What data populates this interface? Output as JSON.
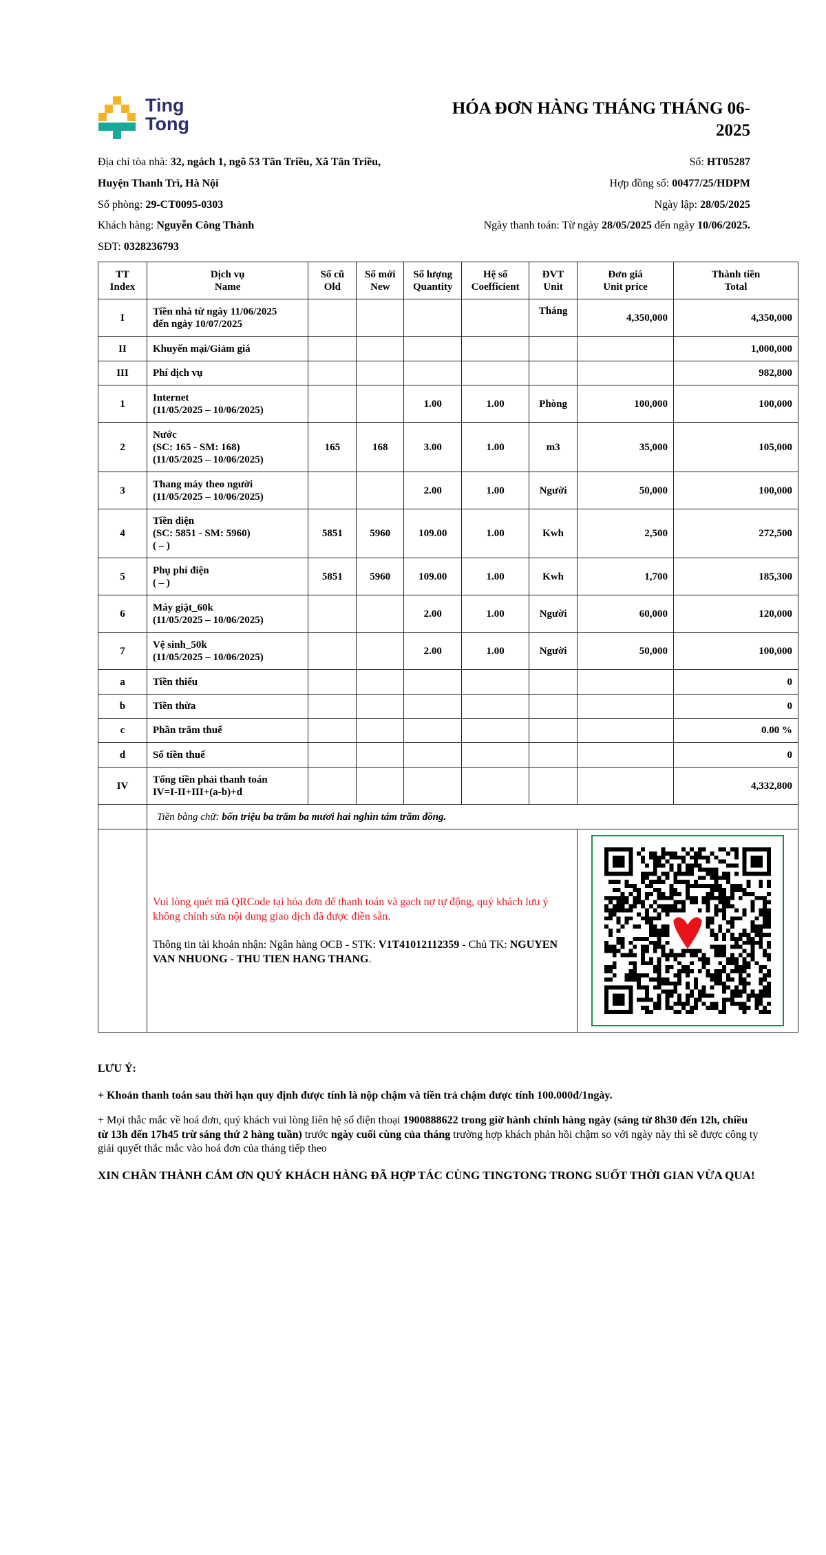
{
  "logo": {
    "line1": "Ting",
    "line2": "Tong",
    "colors": {
      "yellow": "#f5b325",
      "teal": "#1aa89a",
      "navy": "#2b2d6e"
    }
  },
  "title": "HÓA ĐƠN HÀNG THÁNG THÁNG 06-2025",
  "info": {
    "address_label": "Địa chỉ tòa nhà: ",
    "address_line1": "32, ngách 1, ngõ 53 Tân Triều, Xã Tân Triều,",
    "address_line2": "Huyện Thanh Trì, Hà Nội",
    "room_label": "Số phòng: ",
    "room": "29-CT0095-0303",
    "customer_label": "Khách hàng: ",
    "customer": "Nguyễn Công Thành",
    "phone_label": "SĐT: ",
    "phone": "0328236793",
    "number_label": "Số: ",
    "number": "HT05287",
    "contract_label": "Hợp đồng số: ",
    "contract": "00477/25/HDPM",
    "date_label": "Ngày lập: ",
    "date": "28/05/2025",
    "pay_label": "Ngày thanh toán: Từ ngày ",
    "pay_from": "28/05/2025",
    "pay_mid": " đến ngày ",
    "pay_to": "10/06/2025."
  },
  "table": {
    "headers": [
      [
        "TT",
        "Index"
      ],
      [
        "Dịch vụ",
        "Name"
      ],
      [
        "Số cũ",
        "Old"
      ],
      [
        "Số mới",
        "New"
      ],
      [
        "Số lượng",
        "Quantity"
      ],
      [
        "Hệ số",
        "Coefficient"
      ],
      [
        "ĐVT",
        "Unit"
      ],
      [
        "Đơn giá",
        "Unit price"
      ],
      [
        "Thành tiền",
        "Total"
      ]
    ],
    "rows": [
      {
        "index": "I",
        "name": [
          "Tiền nhà từ ngày 11/06/2025",
          "đến ngày 10/07/2025"
        ],
        "old": "",
        "new": "",
        "qty": "",
        "coef": "",
        "unit": "Tháng",
        "price": "4,350,000",
        "total": "4,350,000"
      },
      {
        "index": "II",
        "name": [
          "Khuyến mại/Giảm giá"
        ],
        "old": "",
        "new": "",
        "qty": "",
        "coef": "",
        "unit": "",
        "price": "",
        "total": "1,000,000"
      },
      {
        "index": "III",
        "name": [
          "Phí dịch vụ"
        ],
        "old": "",
        "new": "",
        "qty": "",
        "coef": "",
        "unit": "",
        "price": "",
        "total": "982,800"
      },
      {
        "index": "1",
        "name": [
          "Internet",
          "(11/05/2025 – 10/06/2025)"
        ],
        "old": "",
        "new": "",
        "qty": "1.00",
        "coef": "1.00",
        "unit": "Phòng",
        "price": "100,000",
        "total": "100,000"
      },
      {
        "index": "2",
        "name": [
          "Nước",
          "(SC: 165 - SM: 168)",
          "(11/05/2025 – 10/06/2025)"
        ],
        "old": "165",
        "new": "168",
        "qty": "3.00",
        "coef": "1.00",
        "unit": "m3",
        "price": "35,000",
        "total": "105,000"
      },
      {
        "index": "3",
        "name": [
          "Thang máy theo người",
          "(11/05/2025 – 10/06/2025)"
        ],
        "old": "",
        "new": "",
        "qty": "2.00",
        "coef": "1.00",
        "unit": "Người",
        "price": "50,000",
        "total": "100,000"
      },
      {
        "index": "4",
        "name": [
          "Tiền điện",
          "(SC: 5851 - SM: 5960)",
          "( – )"
        ],
        "old": "5851",
        "new": "5960",
        "qty": "109.00",
        "coef": "1.00",
        "unit": "Kwh",
        "price": "2,500",
        "total": "272,500"
      },
      {
        "index": "5",
        "name": [
          "Phụ phí điện",
          "( – )"
        ],
        "old": "5851",
        "new": "5960",
        "qty": "109.00",
        "coef": "1.00",
        "unit": "Kwh",
        "price": "1,700",
        "total": "185,300"
      },
      {
        "index": "6",
        "name": [
          "Máy giặt_60k",
          "(11/05/2025 – 10/06/2025)"
        ],
        "old": "",
        "new": "",
        "qty": "2.00",
        "coef": "1.00",
        "unit": "Người",
        "price": "60,000",
        "total": "120,000"
      },
      {
        "index": "7",
        "name": [
          "Vệ sinh_50k",
          "(11/05/2025 – 10/06/2025)"
        ],
        "old": "",
        "new": "",
        "qty": "2.00",
        "coef": "1.00",
        "unit": "Người",
        "price": "50,000",
        "total": "100,000"
      },
      {
        "index": "a",
        "name": [
          "Tiền thiếu"
        ],
        "old": "",
        "new": "",
        "qty": "",
        "coef": "",
        "unit": "",
        "price": "",
        "total": "0"
      },
      {
        "index": "b",
        "name": [
          "Tiền thừa"
        ],
        "old": "",
        "new": "",
        "qty": "",
        "coef": "",
        "unit": "",
        "price": "",
        "total": "0"
      },
      {
        "index": "c",
        "name": [
          "Phần trăm thuế"
        ],
        "old": "",
        "new": "",
        "qty": "",
        "coef": "",
        "unit": "",
        "price": "",
        "total": "0.00 %"
      },
      {
        "index": "d",
        "name": [
          "Số tiền thuế"
        ],
        "old": "",
        "new": "",
        "qty": "",
        "coef": "",
        "unit": "",
        "price": "",
        "total": "0"
      },
      {
        "index": "IV",
        "name": [
          "Tổng tiền phải thanh toán",
          "IV=I-II+III+(a-b)+d"
        ],
        "old": "",
        "new": "",
        "qty": "",
        "coef": "",
        "unit": "",
        "price": "",
        "total": "4,332,800"
      }
    ],
    "words_label": "Tiền bằng chữ: ",
    "words": "bốn triệu ba trăm ba mươi hai nghìn tám trăm đồng."
  },
  "payment": {
    "instruction": "Vui lòng quét mã QRCode tại hóa đơn để thanh toán và gạch nợ tự động, quý khách lưu ý không chỉnh sửa nội dung giao dịch đã được điền sẵn.",
    "account_prefix": "Thông tin tài khoản nhận: Ngân hàng OCB - STK: ",
    "account_number": "V1T41012112359",
    "owner_prefix": " - Chủ TK: ",
    "owner": "NGUYEN VAN NHUONG - THU TIEN HANG THANG",
    "owner_suffix": ".",
    "instruction_color": "#e8141c",
    "qr_border_color": "#1f8a4c"
  },
  "notes": {
    "heading": "LƯU Ý:",
    "note1": "+ Khoản thanh toán sau thời hạn quy định được tính là nộp chậm và tiền trả chậm được tính 100.000đ/1ngày.",
    "note2_a": "+ Mọi thắc mắc về hoá đơn, quý khách vui lòng liên hệ số điện thoại ",
    "note2_b": "1900888622 trong giờ hành chính hàng ngày (sáng từ 8h30 đến 12h, chiều từ 13h đến 17h45 trừ sáng thứ 2 hàng tuần)",
    "note2_c": " trước ",
    "note2_d": "ngày cuối cùng của tháng",
    "note2_e": " trường hợp khách phản hồi chậm so với ngày này thì sẽ được công ty giải quyết thắc mắc vào hoá đơn của tháng tiếp theo",
    "thanks": "XIN CHÂN THÀNH CẢM ƠN QUÝ KHÁCH HÀNG ĐÃ HỢP TÁC CÙNG TINGTONG TRONG SUỐT THỜI GIAN VỪA QUA!"
  }
}
